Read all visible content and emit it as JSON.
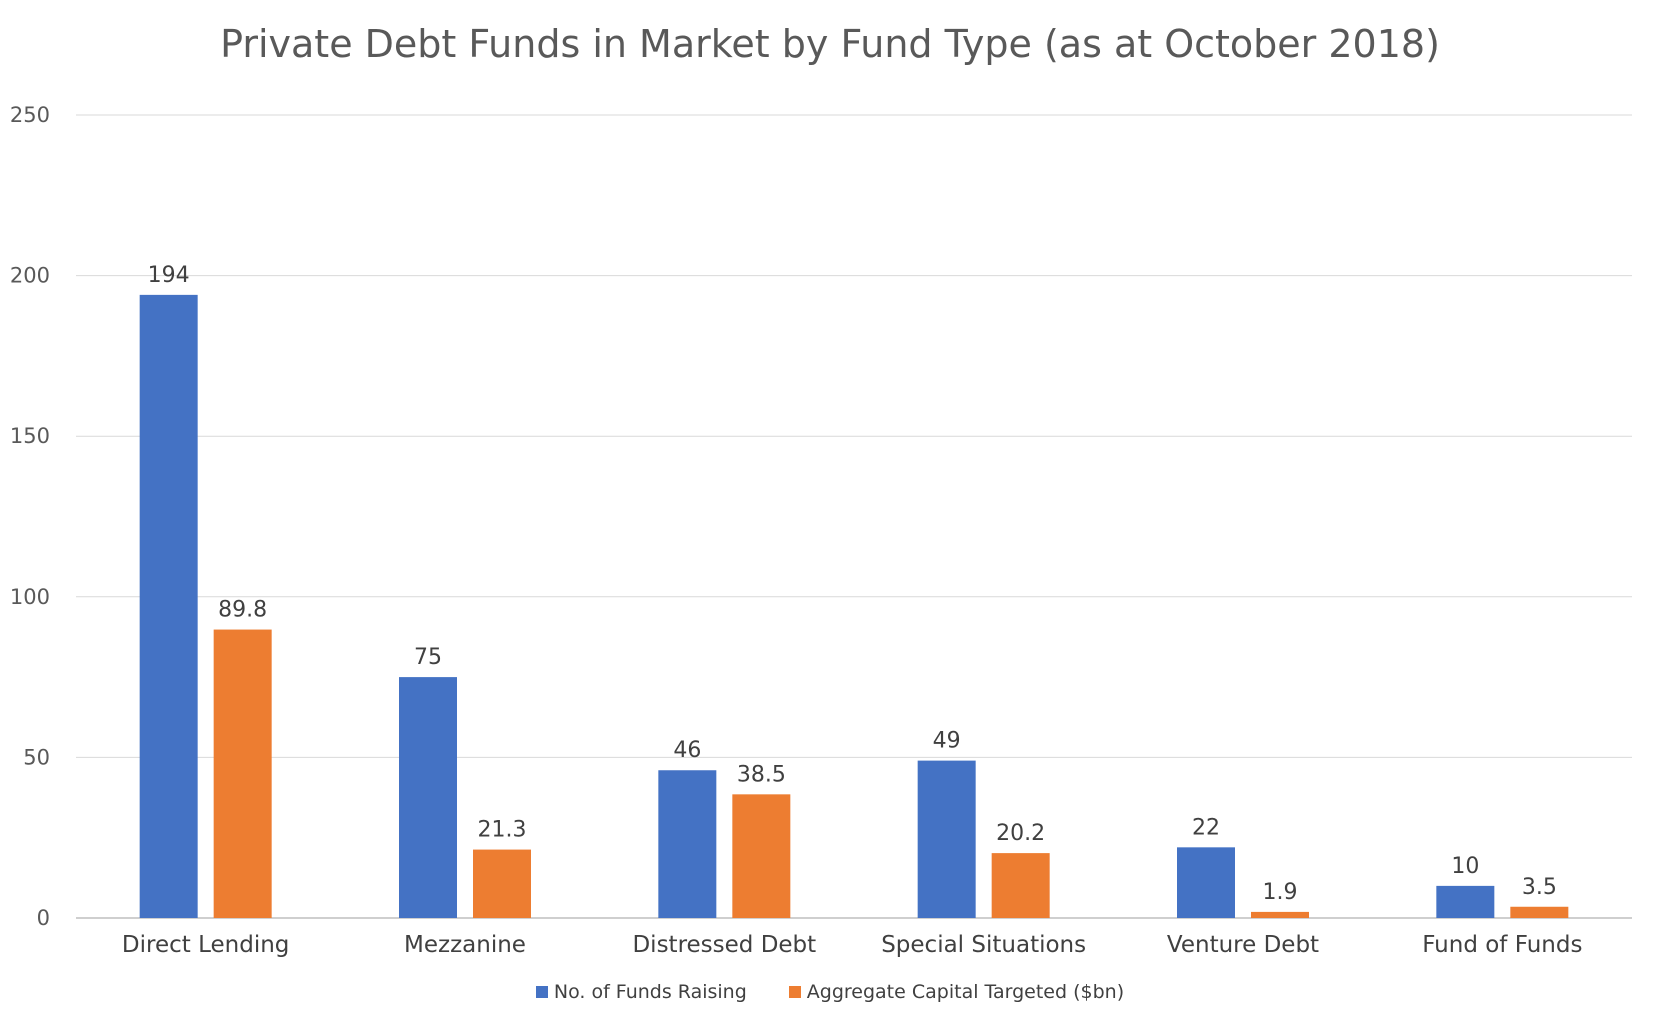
{
  "chart_data": {
    "type": "bar",
    "title": "Private Debt Funds in Market by Fund Type (as at October 2018)",
    "categories": [
      "Direct Lending",
      "Mezzanine",
      "Distressed Debt",
      "Special Situations",
      "Venture Debt",
      "Fund of Funds"
    ],
    "series": [
      {
        "name": "No. of Funds Raising",
        "color": "#4472C4",
        "values": [
          194,
          75,
          46,
          49,
          22,
          10
        ],
        "labels": [
          "194",
          "75",
          "46",
          "49",
          "22",
          "10"
        ]
      },
      {
        "name": "Aggregate Capital Targeted ($bn)",
        "color": "#ED7D31",
        "values": [
          89.8,
          21.3,
          38.5,
          20.2,
          1.9,
          3.5
        ],
        "labels": [
          "89.8",
          "21.3",
          "38.5",
          "20.2",
          "1.9",
          "3.5"
        ]
      }
    ],
    "ylim": [
      0,
      250
    ],
    "yticks": [
      0,
      50,
      100,
      150,
      200,
      250
    ],
    "grid": true,
    "legend_position": "bottom"
  }
}
